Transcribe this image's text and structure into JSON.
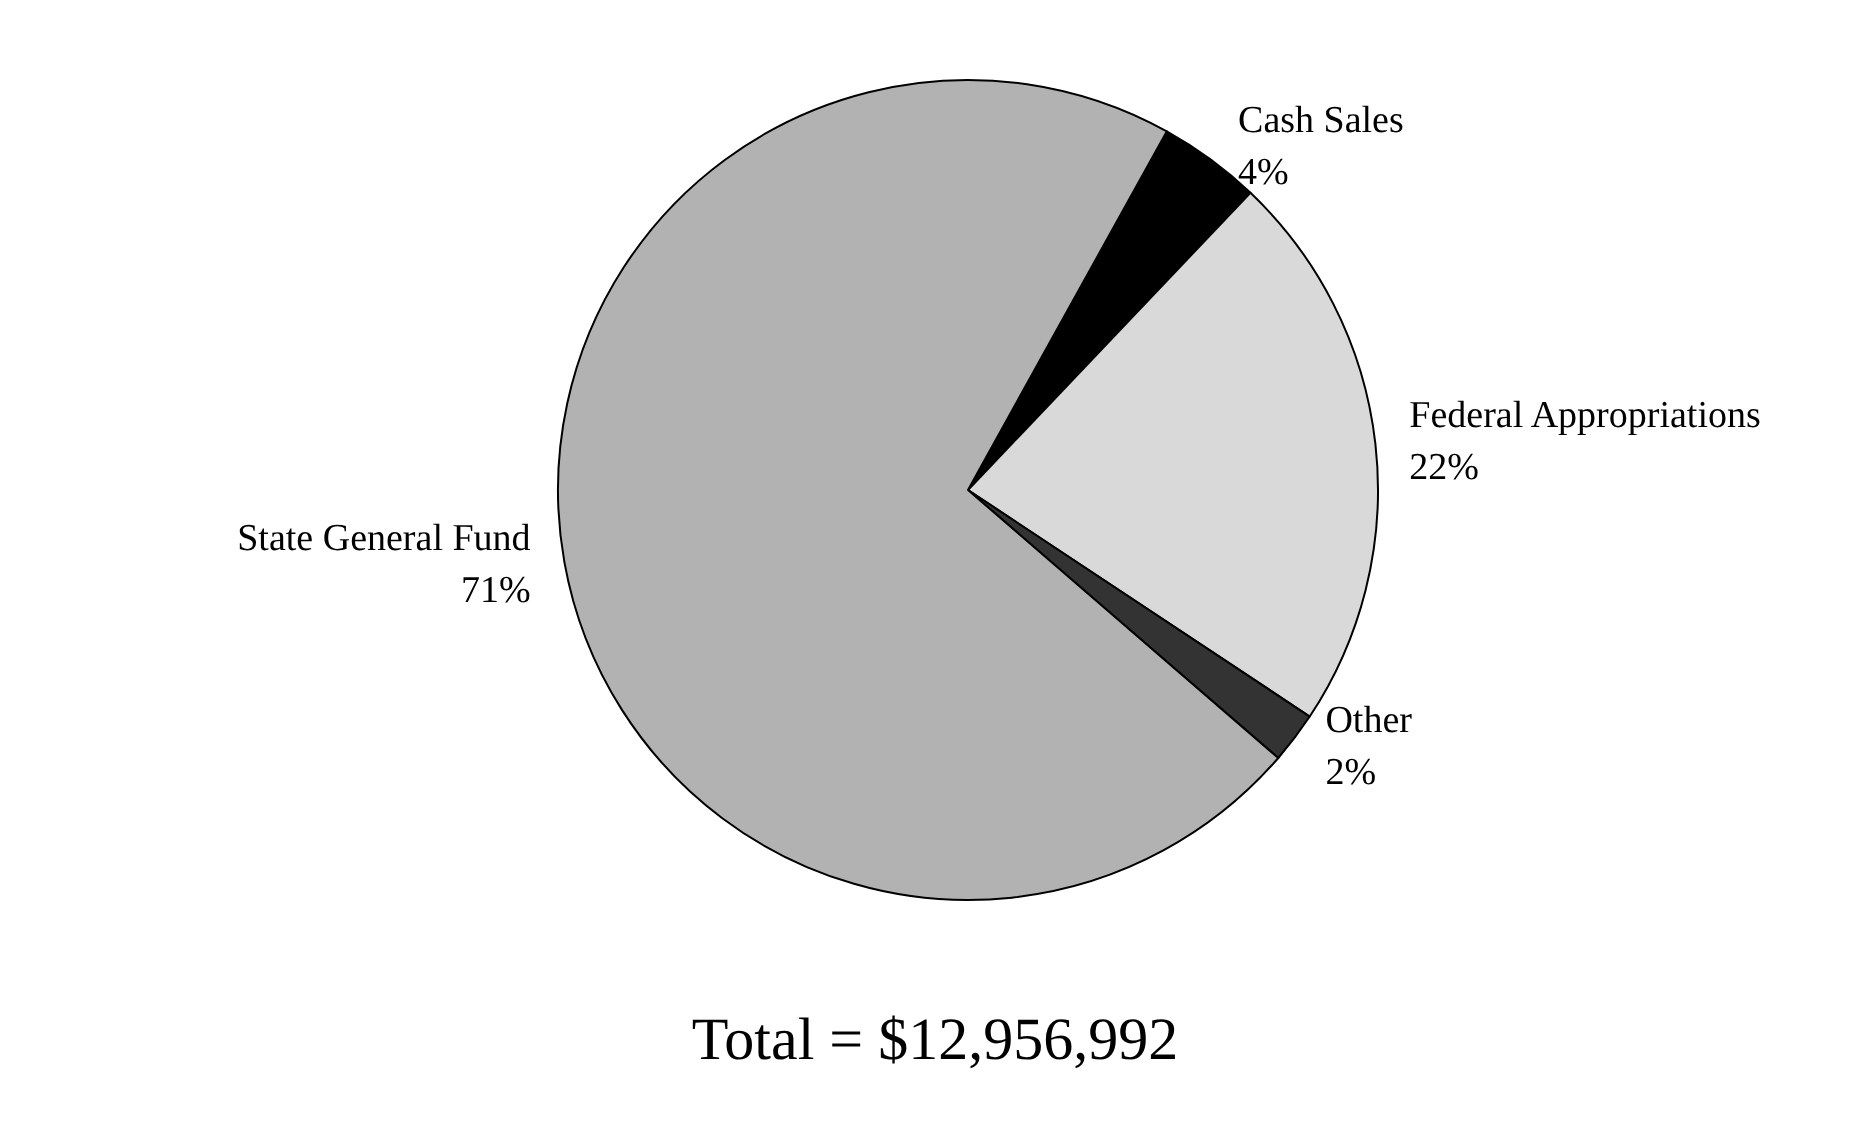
{
  "chart_data": {
    "type": "pie",
    "categories": [
      "Cash Sales",
      "Federal Appropriations",
      "Other",
      "State General Fund"
    ],
    "values": [
      4,
      22,
      2,
      71
    ],
    "colors": [
      "#000000",
      "#d9d9d9",
      "#333333",
      "#b2b2b2"
    ],
    "value_labels": [
      "4%",
      "22%",
      "2%",
      "71%"
    ],
    "annotations": [
      "Total = $12,956,992"
    ]
  }
}
